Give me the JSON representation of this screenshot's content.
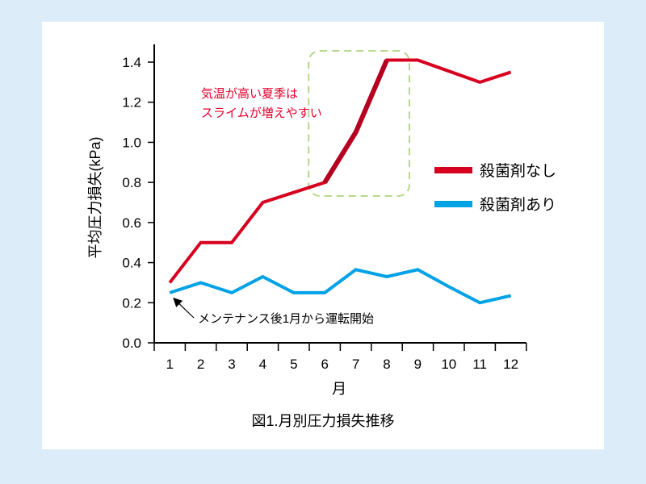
{
  "chart_data": {
    "type": "line",
    "title": "図1.月別圧力損失推移",
    "xlabel": "月",
    "ylabel": "平均圧力損失(kPa)",
    "categories": [
      "1",
      "2",
      "3",
      "4",
      "5",
      "6",
      "7",
      "8",
      "9",
      "10",
      "11",
      "12"
    ],
    "ylim": [
      0,
      1.4
    ],
    "yticks": [
      "0.0",
      "0.2",
      "0.4",
      "0.6",
      "0.8",
      "1.0",
      "1.2",
      "1.4"
    ],
    "grid": false,
    "legend_position": "right",
    "series": [
      {
        "name": "殺菌剤なし",
        "color": "#d7001f",
        "values": [
          0.3,
          0.5,
          0.5,
          0.7,
          0.75,
          0.8,
          1.05,
          1.41,
          1.41,
          1.355,
          1.3,
          1.35
        ],
        "highlight_color": "#b5001f"
      },
      {
        "name": "殺菌剤あり",
        "color": "#00a2e6",
        "values": [
          0.25,
          0.3,
          0.25,
          0.33,
          0.25,
          0.25,
          0.365,
          0.33,
          0.365,
          0.28,
          0.2,
          0.235
        ]
      }
    ],
    "annotations": [
      {
        "text_lines": [
          "気温が高い夏季は",
          "スライムが増えやすい"
        ],
        "color": "#e5002d",
        "highlight_months": [
          "6",
          "8"
        ],
        "box_color": "#b5d98a"
      },
      {
        "text": "メンテナンス後1月から運転開始",
        "arrow_to_month": "1"
      }
    ]
  }
}
